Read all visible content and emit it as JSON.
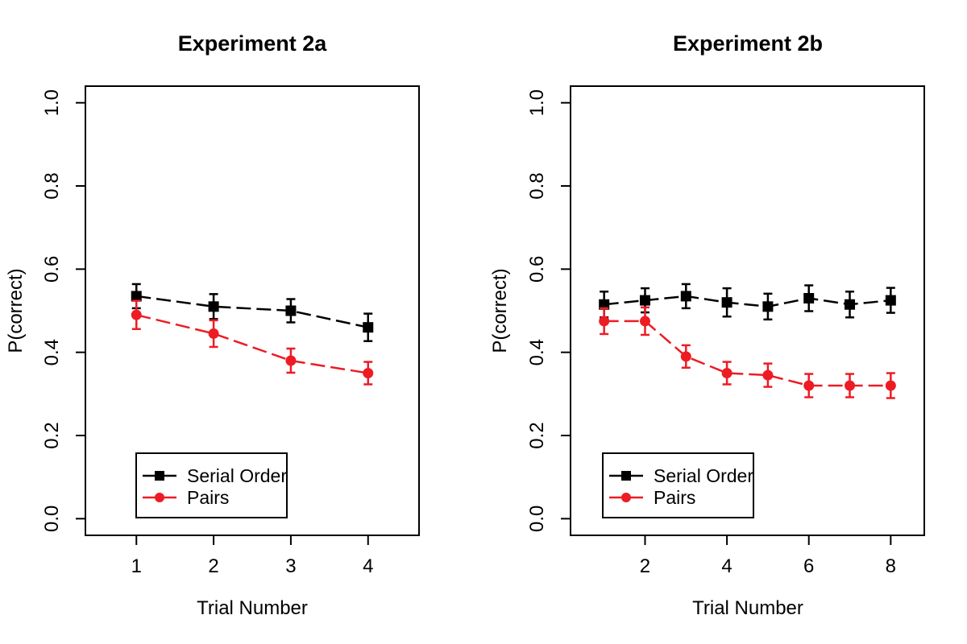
{
  "figure": {
    "background": "#ffffff",
    "text_color": "#000000"
  },
  "chart_data": [
    {
      "type": "line",
      "title": "Experiment 2a",
      "xlabel": "Trial Number",
      "ylabel": "P(correct)",
      "x": [
        1,
        2,
        3,
        4
      ],
      "x_ticks": [
        1,
        2,
        3,
        4
      ],
      "y_ticks": [
        "0.0",
        "0.2",
        "0.4",
        "0.6",
        "0.8",
        "1.0"
      ],
      "xlim": [
        0.34,
        4.66
      ],
      "ylim": [
        -0.04,
        1.04
      ],
      "grid": false,
      "legend": {
        "position": "bottom-left",
        "items": [
          "Serial Order",
          "Pairs"
        ]
      },
      "series": [
        {
          "name": "Serial Order",
          "color": "#000000",
          "marker": "square",
          "linestyle": "dashed",
          "values": [
            0.535,
            0.51,
            0.5,
            0.46
          ],
          "errors": [
            0.029,
            0.03,
            0.028,
            0.033
          ]
        },
        {
          "name": "Pairs",
          "color": "#ed1c24",
          "marker": "circle",
          "linestyle": "dashed",
          "values": [
            0.49,
            0.445,
            0.38,
            0.35
          ],
          "errors": [
            0.034,
            0.032,
            0.029,
            0.027
          ]
        }
      ]
    },
    {
      "type": "line",
      "title": "Experiment 2b",
      "xlabel": "Trial Number",
      "ylabel": "P(correct)",
      "x": [
        1,
        2,
        3,
        4,
        5,
        6,
        7,
        8
      ],
      "x_ticks": [
        2,
        4,
        6,
        8
      ],
      "y_ticks": [
        "0.0",
        "0.2",
        "0.4",
        "0.6",
        "0.8",
        "1.0"
      ],
      "xlim": [
        0.18,
        8.82
      ],
      "ylim": [
        -0.04,
        1.04
      ],
      "grid": false,
      "legend": {
        "position": "bottom-left",
        "items": [
          "Serial Order",
          "Pairs"
        ]
      },
      "series": [
        {
          "name": "Serial Order",
          "color": "#000000",
          "marker": "square",
          "linestyle": "dashed",
          "values": [
            0.515,
            0.525,
            0.535,
            0.52,
            0.51,
            0.53,
            0.515,
            0.525
          ],
          "errors": [
            0.031,
            0.029,
            0.029,
            0.034,
            0.031,
            0.031,
            0.031,
            0.03
          ]
        },
        {
          "name": "Pairs",
          "color": "#ed1c24",
          "marker": "circle",
          "linestyle": "dashed",
          "values": [
            0.475,
            0.475,
            0.39,
            0.35,
            0.345,
            0.32,
            0.32,
            0.32
          ],
          "errors": [
            0.031,
            0.033,
            0.027,
            0.027,
            0.028,
            0.028,
            0.028,
            0.03
          ]
        }
      ]
    }
  ]
}
